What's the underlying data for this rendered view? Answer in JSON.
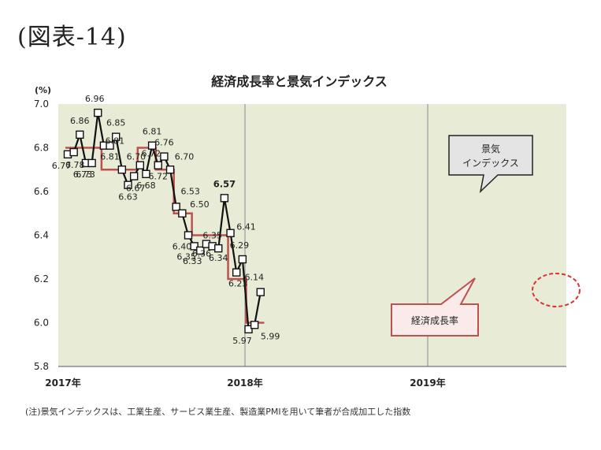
{
  "figure_label": "(図表-14)",
  "note": "(注)景気インデックスは、工業生産、サービス業生産、製造業PMIを用いて筆者が合成加工した指数",
  "colors": {
    "plot_bg": "#e8ecd6",
    "growth_line": "#c0504d",
    "index_line": "#111111",
    "highlight_circle": "#e03030"
  },
  "chart_data": {
    "type": "line",
    "title": "経済成長率と景気インデックス",
    "ylabel": "(%)",
    "ylim": [
      5.8,
      7.0
    ],
    "yticks": [
      "5.8",
      "6.0",
      "6.2",
      "6.4",
      "6.6",
      "6.8",
      "7.0"
    ],
    "xticks": [
      "2017年",
      "2018年",
      "2019年"
    ],
    "grid": "vertical lines at year boundaries",
    "series": [
      {
        "name": "景気インデックス",
        "style": "line with square markers",
        "x": [
          "2017-01",
          "2017-02",
          "2017-03",
          "2017-04",
          "2017-05",
          "2017-06",
          "2017-07",
          "2017-08",
          "2017-09",
          "2017-10",
          "2017-11",
          "2017-12",
          "2018-01",
          "2018-02",
          "2018-03",
          "2018-04",
          "2018-05",
          "2018-06",
          "2018-07",
          "2018-08",
          "2018-09",
          "2018-10",
          "2018-11",
          "2018-12",
          "2019-01",
          "2019-02",
          "2019-03",
          "2019-04",
          "2019-05",
          "2019-06",
          "2019-07",
          "2019-08",
          "2019-09"
        ],
        "values": [
          6.77,
          6.78,
          6.86,
          6.73,
          6.73,
          6.96,
          6.81,
          6.81,
          6.85,
          6.7,
          6.63,
          6.67,
          6.72,
          6.68,
          6.81,
          6.72,
          6.76,
          6.7,
          6.53,
          6.5,
          6.4,
          6.35,
          6.33,
          6.36,
          6.35,
          6.34,
          6.57,
          6.41,
          6.23,
          6.29,
          5.97,
          5.99,
          6.14
        ],
        "labels": [
          "6.77",
          "",
          "6.86\n6.78",
          "6.73",
          "6.73",
          "6.96",
          "6.81",
          "6.81",
          "6.85",
          "6.70",
          "6.63",
          "6.67",
          "6.72",
          "6.68",
          "6.81",
          "6.72",
          "6.76",
          "6.70",
          "6.53",
          "6.50",
          "6.40",
          "6.35",
          "6.33",
          "6.36",
          "6.35",
          "6.34",
          "6.57",
          "6.41",
          "6.23",
          "6.29",
          "5.97",
          "5.99",
          "6.14"
        ]
      },
      {
        "name": "経済成長率",
        "style": "step line",
        "quarters": [
          "2017Q1",
          "2017Q2",
          "2017Q3",
          "2017Q4",
          "2018Q1",
          "2018Q2",
          "2018Q3",
          "2018Q4",
          "2019Q1",
          "2019Q2",
          "2019Q3"
        ],
        "values": [
          6.8,
          6.8,
          6.7,
          6.7,
          6.8,
          6.7,
          6.5,
          6.4,
          6.4,
          6.2,
          6.0
        ]
      }
    ],
    "callouts": {
      "index": "景気\nインデックス",
      "growth": "経済成長率"
    }
  }
}
